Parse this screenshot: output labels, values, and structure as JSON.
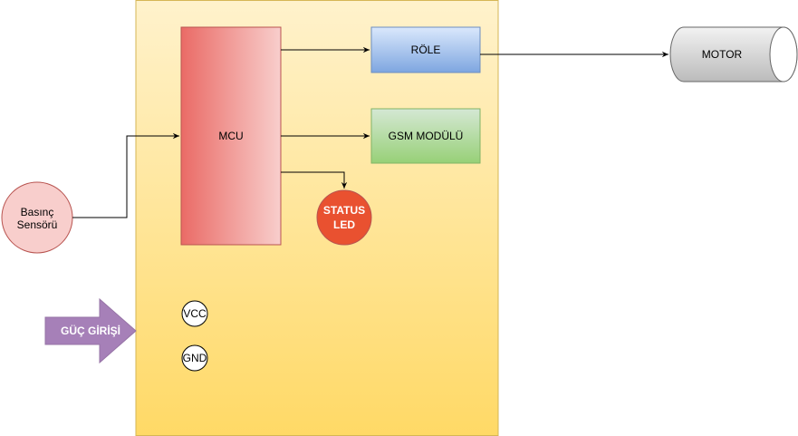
{
  "nodes": {
    "mcu": "MCU",
    "relay": "RÖLE",
    "gsm": "GSM MODÜLÜ",
    "status_led": [
      "STATUS",
      "LED"
    ],
    "motor": "MOTOR",
    "sensor": [
      "Basınç",
      "Sensörü"
    ],
    "power_input": "GÜÇ GİRİŞİ",
    "vcc": "VCC",
    "gnd": "GND"
  },
  "colors": {
    "board_top": "#fff2cc",
    "board_bottom": "#ffd966",
    "board_stroke": "#d6b656",
    "mcu_left": "#ea6b66",
    "mcu_right": "#f8cecc",
    "mcu_stroke": "#b85450",
    "relay_top": "#dae8fc",
    "relay_bottom": "#7ea6e0",
    "relay_stroke": "#6c8ebf",
    "gsm_top": "#d5e8d4",
    "gsm_bottom": "#97d077",
    "gsm_stroke": "#82b366",
    "led_fill": "#e95130",
    "led_stroke": "#b85450",
    "sensor_fill": "#f8cecc",
    "sensor_stroke": "#b85450",
    "power_fill": "#a680b8",
    "power_stroke": "#9673a6",
    "motor_fill": "#bbbbbb"
  }
}
